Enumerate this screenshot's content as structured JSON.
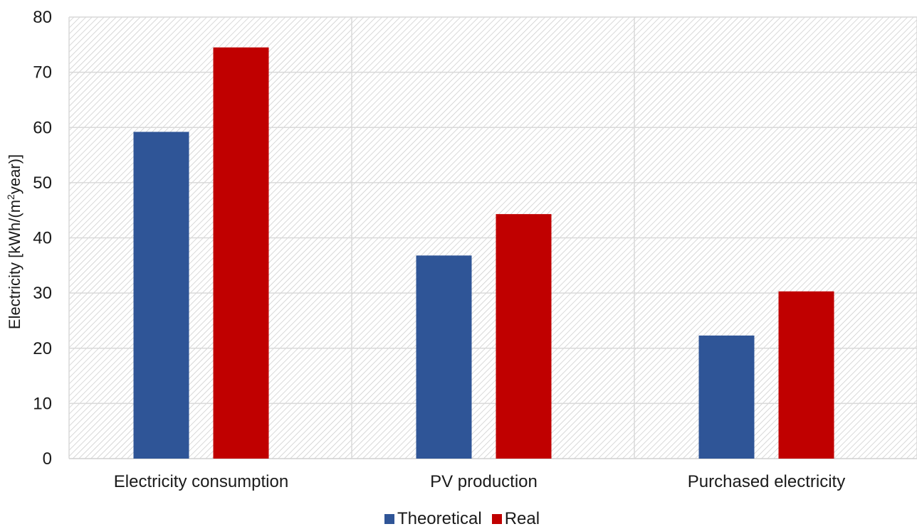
{
  "chart_data": {
    "type": "bar",
    "categories": [
      "Electricity consumption",
      "PV production",
      "Purchased electricity"
    ],
    "series": [
      {
        "name": "Theoretical",
        "values": [
          59.2,
          36.8,
          22.3
        ],
        "color": "#2f5597"
      },
      {
        "name": "Real",
        "values": [
          74.5,
          44.3,
          30.3
        ],
        "color": "#c00000"
      }
    ],
    "xlabel": "",
    "ylabel": "Electricity [kWh/(m²year)]",
    "ylim": [
      0,
      80
    ],
    "yticks": [
      "0",
      "10",
      "20",
      "30",
      "40",
      "50",
      "60",
      "70",
      "80"
    ],
    "grid": true,
    "legend_position": "bottom-center",
    "plot_background": "diagonal-hatch"
  }
}
